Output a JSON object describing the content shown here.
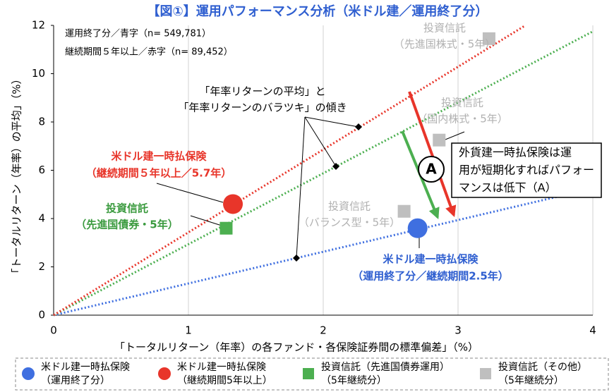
{
  "chart_data": {
    "type": "scatter",
    "title": "【図①】運用パフォーマンス分析（米ドル建／運用終了分）",
    "x_label": "「トータルリターン（年率）の各ファンド・各保険証券間の標準偏差」（%）",
    "y_label": "「トータルリターン（年率）の平均」（%）",
    "xlim": [
      0,
      4
    ],
    "xticks": [
      0,
      1,
      2,
      3,
      4
    ],
    "ylim": [
      0,
      12
    ],
    "yticks": [
      0,
      2,
      4,
      6,
      8,
      10,
      12
    ],
    "grid": true,
    "series": [
      {
        "name": [
          "米ドル建一時払保険",
          "（運用終了分）"
        ],
        "color": "#3f6fe0",
        "marker": "circle",
        "x": [
          2.7
        ],
        "values": [
          3.6
        ]
      },
      {
        "name": [
          "米ドル建一時払保険",
          "（継続期間5年以上）"
        ],
        "color": "#e8352a",
        "marker": "circle",
        "x": [
          1.33
        ],
        "values": [
          4.6
        ]
      },
      {
        "name": [
          "投資信託（先進国債券運用）",
          "（5年継続分）"
        ],
        "color": "#4caf50",
        "marker": "square",
        "x": [
          1.28
        ],
        "values": [
          3.6
        ]
      },
      {
        "name": [
          "投資信託（その他）",
          "（5年継続分）"
        ],
        "color": "#bfbfbf",
        "marker": "square",
        "x": [
          3.23,
          2.86,
          2.6
        ],
        "values": [
          11.45,
          7.25,
          4.3
        ]
      }
    ],
    "lines": [
      {
        "color": "#3f6fe0",
        "x": [
          0,
          4
        ],
        "values": [
          0,
          5.25
        ]
      },
      {
        "color": "#4caf50",
        "x": [
          0,
          4
        ],
        "values": [
          0,
          11.75
        ]
      },
      {
        "color": "#e8352a",
        "x": [
          0,
          3.5
        ],
        "values": [
          0,
          12
        ]
      }
    ],
    "annotations": [
      {
        "color": "#000000",
        "lines": [
          "運用終了分／青字（n= 549,781）"
        ]
      },
      {
        "color": "#000000",
        "lines": [
          "継続期間５年以上／赤字（n= 89,452）"
        ]
      },
      {
        "color": "#000000",
        "lines": [
          "「年率リターンの平均」と",
          "「年率リターンのバラツキ」の傾き"
        ]
      },
      {
        "color": "#e8352a",
        "lines": [
          "米ドル建一時払保険",
          "（継続期間５年以上／5.7年）"
        ]
      },
      {
        "color": "#3a9a3e",
        "lines": [
          "投資信託",
          "（先進国債券・5年）"
        ]
      },
      {
        "color": "#b0b0b0",
        "lines": [
          "投資信託",
          "（先進国株式・5年）"
        ]
      },
      {
        "color": "#b0b0b0",
        "lines": [
          "投資信託",
          "（国内株式・5年）"
        ]
      },
      {
        "color": "#b0b0b0",
        "lines": [
          "投資信託",
          "（バランス型・5年）"
        ]
      },
      {
        "color": "#2f5fd0",
        "lines": [
          "米ドル建一時払保険",
          "（運用終了分／継続期間2.5年）"
        ]
      },
      {
        "color": "#000000",
        "lines": [
          "外貨建一時払保険は運",
          "用が短期化すればパフォー",
          "マンスは低下（A）"
        ]
      },
      {
        "color": "#000000",
        "lines": [
          "A"
        ]
      }
    ]
  }
}
